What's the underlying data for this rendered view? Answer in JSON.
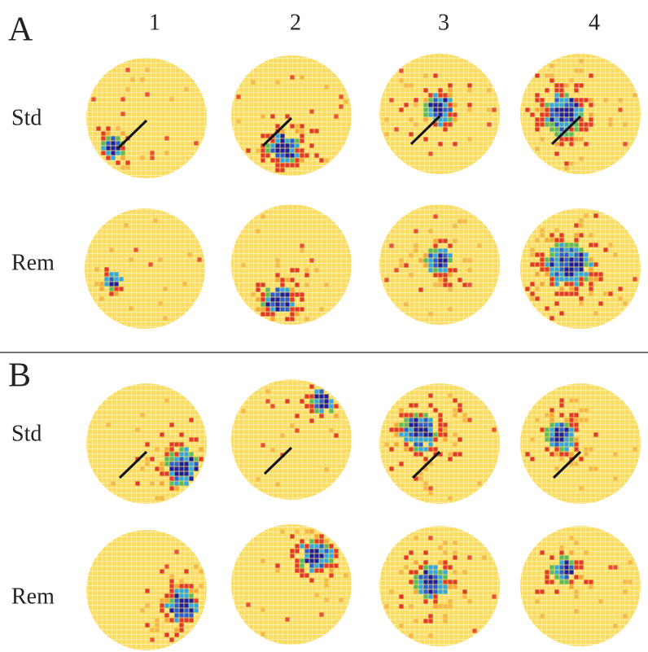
{
  "panel_a": {
    "label": "A",
    "column_headers": [
      "1",
      "2",
      "3",
      "4"
    ],
    "row_labels": [
      "Std",
      "Rem"
    ]
  },
  "panel_b": {
    "label": "B",
    "row_labels": [
      "Std",
      "Rem"
    ]
  }
}
